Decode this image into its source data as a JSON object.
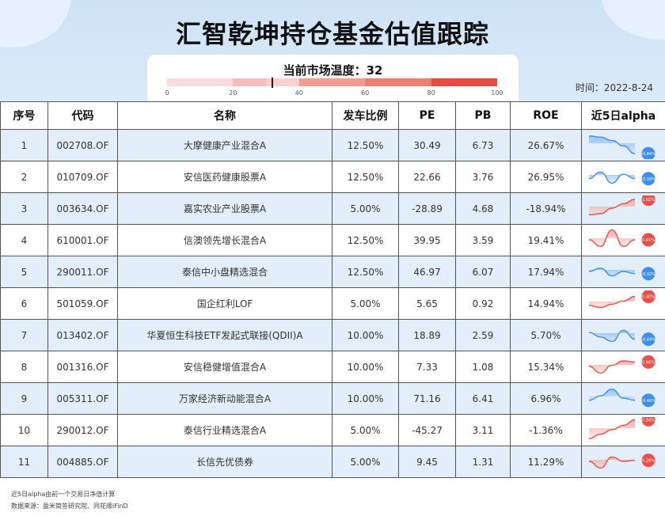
{
  "title": "汇智乾坤持仓基金估值跟踪",
  "temperature": {
    "label": "当前市场温度：32",
    "value": 32,
    "ticks": [
      "0",
      "20",
      "40",
      "60",
      "80",
      "100"
    ],
    "segments": [
      {
        "from": 0,
        "to": 20,
        "color": "#fbdcdc"
      },
      {
        "from": 20,
        "to": 30,
        "color": "#f7bcbc"
      },
      {
        "from": 30,
        "to": 40,
        "color": "#f8d0cd"
      },
      {
        "from": 40,
        "to": 60,
        "color": "#f29b92"
      },
      {
        "from": 60,
        "to": 80,
        "color": "#ee7d72"
      },
      {
        "from": 80,
        "to": 100,
        "color": "#e34b43"
      }
    ]
  },
  "date": "时间：2022-8-24",
  "table": {
    "headers": [
      "序号",
      "代码",
      "名称",
      "发车比例",
      "PE",
      "PB",
      "ROE",
      "近5日alpha"
    ],
    "rows": [
      {
        "no": "1",
        "code": "002708.OF",
        "name": "大摩健康产业混合A",
        "ratio": "12.50%",
        "pe": "30.49",
        "pb": "6.73",
        "roe": "26.67%",
        "badge": "-0.84%",
        "spark": [
          0.1,
          0.15,
          0.3,
          0.55,
          0.9
        ],
        "badge_color": "#3c8ef0"
      },
      {
        "no": "2",
        "code": "010709.OF",
        "name": "安信医药健康股票A",
        "ratio": "12.50%",
        "pe": "22.66",
        "pb": "3.76",
        "roe": "26.95%",
        "badge": "-0.39%",
        "spark": [
          0.6,
          0.3,
          0.8,
          0.4,
          0.6
        ],
        "badge_color": "#3c8ef0"
      },
      {
        "no": "3",
        "code": "003634.OF",
        "name": "嘉实农业产业股票A",
        "ratio": "5.00%",
        "pe": "-28.89",
        "pb": "4.68",
        "roe": "-18.94%",
        "badge": "1.02%",
        "spark": [
          0.8,
          0.75,
          0.5,
          0.3,
          0.1
        ],
        "badge_color": "#e9504a"
      },
      {
        "no": "4",
        "code": "610001.OF",
        "name": "信澳领先增长混合A",
        "ratio": "12.50%",
        "pe": "39.95",
        "pb": "3.59",
        "roe": "19.41%",
        "badge": "0.61%",
        "spark": [
          0.5,
          0.8,
          0.05,
          0.8,
          0.5
        ],
        "badge_color": "#e9504a"
      },
      {
        "no": "5",
        "code": "290011.OF",
        "name": "泰信中小盘精选混合",
        "ratio": "12.50%",
        "pe": "46.97",
        "pb": "6.07",
        "roe": "17.94%",
        "badge": "-0.32%",
        "spark": [
          0.5,
          0.35,
          0.7,
          0.5,
          0.6
        ],
        "badge_color": "#3c8ef0"
      },
      {
        "no": "6",
        "code": "501059.OF",
        "name": "国企红利LOF",
        "ratio": "5.00%",
        "pe": "5.65",
        "pb": "0.92",
        "roe": "14.94%",
        "badge": "0.40%",
        "spark": [
          0.6,
          0.7,
          0.55,
          0.4,
          0.2
        ],
        "badge_color": "#e9504a"
      },
      {
        "no": "7",
        "code": "013402.OF",
        "name": "华夏恒生科技ETF发起式联接(QDII)A",
        "ratio": "10.00%",
        "pe": "18.89",
        "pb": "2.59",
        "roe": "5.70%",
        "badge": "-0.44%",
        "spark": [
          0.4,
          0.6,
          0.8,
          0.3,
          0.7
        ],
        "badge_color": "#3c8ef0"
      },
      {
        "no": "8",
        "code": "001316.OF",
        "name": "安信稳健增值混合A",
        "ratio": "10.00%",
        "pe": "7.33",
        "pb": "1.08",
        "roe": "15.34%",
        "badge": "0.66%",
        "spark": [
          0.5,
          0.8,
          0.45,
          0.25,
          0.3
        ],
        "badge_color": "#e9504a"
      },
      {
        "no": "9",
        "code": "005311.OF",
        "name": "万家经济新动能混合A",
        "ratio": "10.00%",
        "pe": "71.16",
        "pb": "6.41",
        "roe": "6.96%",
        "badge": "-0.46%",
        "spark": [
          0.6,
          0.4,
          0.1,
          0.5,
          0.6
        ],
        "badge_color": "#3c8ef0"
      },
      {
        "no": "10",
        "code": "290012.OF",
        "name": "泰信行业精选混合A",
        "ratio": "5.00%",
        "pe": "-45.27",
        "pb": "3.11",
        "roe": "-1.36%",
        "badge": "0.94%",
        "spark": [
          0.9,
          0.7,
          0.5,
          0.3,
          0.05
        ],
        "badge_color": "#e9504a"
      },
      {
        "no": "11",
        "code": "004885.OF",
        "name": "长信先优债券",
        "ratio": "5.00%",
        "pe": "9.45",
        "pb": "1.31",
        "roe": "11.29%",
        "badge": "0.26%",
        "spark": [
          0.5,
          0.8,
          0.3,
          0.5,
          0.45
        ],
        "badge_color": "#e9504a"
      }
    ]
  },
  "footnotes": [
    "近5日alpha由前一个交易日净值计算",
    "数据来源：盈米简答研究院、同花顺iFinD"
  ]
}
